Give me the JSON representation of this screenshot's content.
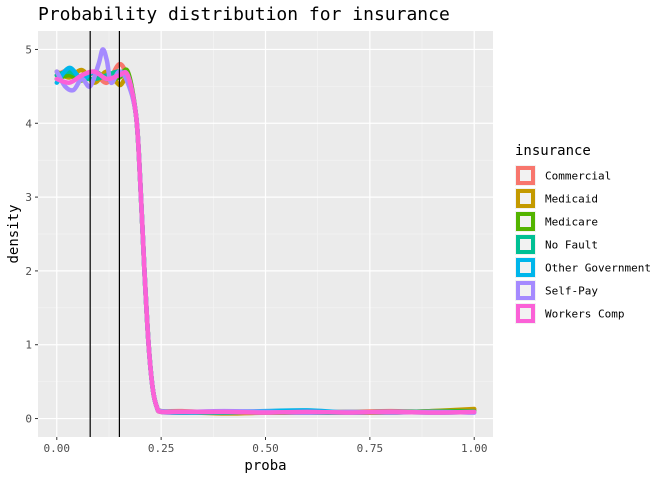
{
  "chart_data": {
    "type": "line",
    "title": "Probability distribution for insurance",
    "xlabel": "proba",
    "ylabel": "density",
    "xlim": [
      -0.045,
      1.045
    ],
    "ylim": [
      -0.25,
      5.25
    ],
    "x_ticks": [
      0.0,
      0.25,
      0.5,
      0.75,
      1.0
    ],
    "x_tick_labels": [
      "0.00",
      "0.25",
      "0.50",
      "0.75",
      "1.00"
    ],
    "y_ticks": [
      0,
      1,
      2,
      3,
      4,
      5
    ],
    "y_tick_labels": [
      "0",
      "1",
      "2",
      "3",
      "4",
      "5"
    ],
    "grid": true,
    "legend_position": "right",
    "legend_title": "insurance",
    "vlines": [
      0.08,
      0.15
    ],
    "series": [
      {
        "name": "Commercial",
        "color": "#F8766D",
        "x": [
          0.0,
          0.03,
          0.06,
          0.09,
          0.12,
          0.15,
          0.17,
          0.19,
          0.2,
          0.21,
          0.22,
          0.23,
          0.24,
          0.25,
          0.3,
          0.4,
          0.5,
          0.6,
          0.7,
          0.8,
          0.9,
          1.0
        ],
        "y": [
          4.65,
          4.72,
          4.6,
          4.68,
          4.55,
          4.8,
          4.6,
          4.1,
          3.2,
          2.0,
          1.0,
          0.4,
          0.15,
          0.1,
          0.1,
          0.08,
          0.09,
          0.08,
          0.09,
          0.1,
          0.09,
          0.12
        ]
      },
      {
        "name": "Medicaid",
        "color": "#C49A00",
        "x": [
          0.0,
          0.03,
          0.06,
          0.09,
          0.12,
          0.15,
          0.17,
          0.19,
          0.2,
          0.21,
          0.22,
          0.23,
          0.24,
          0.25,
          0.3,
          0.4,
          0.5,
          0.6,
          0.7,
          0.8,
          0.9,
          1.0
        ],
        "y": [
          4.7,
          4.62,
          4.72,
          4.55,
          4.7,
          4.52,
          4.6,
          4.1,
          3.2,
          2.0,
          1.0,
          0.4,
          0.15,
          0.09,
          0.09,
          0.07,
          0.08,
          0.09,
          0.08,
          0.08,
          0.1,
          0.13
        ]
      },
      {
        "name": "Medicare",
        "color": "#53B400",
        "x": [
          0.0,
          0.03,
          0.06,
          0.09,
          0.12,
          0.15,
          0.17,
          0.19,
          0.2,
          0.21,
          0.22,
          0.23,
          0.24,
          0.25,
          0.3,
          0.4,
          0.5,
          0.6,
          0.7,
          0.8,
          0.9,
          1.0
        ],
        "y": [
          4.6,
          4.65,
          4.58,
          4.7,
          4.6,
          4.62,
          4.7,
          4.1,
          3.2,
          2.0,
          1.0,
          0.4,
          0.15,
          0.1,
          0.08,
          0.09,
          0.08,
          0.08,
          0.09,
          0.08,
          0.1,
          0.1
        ]
      },
      {
        "name": "No Fault",
        "color": "#00C094",
        "x": [
          0.0,
          0.03,
          0.06,
          0.09,
          0.12,
          0.15,
          0.17,
          0.19,
          0.2,
          0.21,
          0.22,
          0.23,
          0.24,
          0.25,
          0.3,
          0.4,
          0.5,
          0.6,
          0.7,
          0.8,
          0.9,
          1.0
        ],
        "y": [
          4.65,
          4.7,
          4.62,
          4.6,
          4.65,
          4.7,
          4.6,
          4.1,
          3.2,
          2.0,
          1.0,
          0.4,
          0.15,
          0.1,
          0.09,
          0.08,
          0.09,
          0.08,
          0.08,
          0.09,
          0.09,
          0.09
        ]
      },
      {
        "name": "Other Government",
        "color": "#00B6EB",
        "x": [
          0.0,
          0.03,
          0.06,
          0.09,
          0.12,
          0.15,
          0.17,
          0.19,
          0.2,
          0.21,
          0.22,
          0.23,
          0.24,
          0.25,
          0.3,
          0.4,
          0.5,
          0.6,
          0.7,
          0.8,
          0.9,
          1.0
        ],
        "y": [
          4.55,
          4.75,
          4.6,
          4.7,
          4.6,
          4.65,
          4.65,
          4.1,
          3.2,
          2.0,
          1.0,
          0.4,
          0.15,
          0.09,
          0.08,
          0.09,
          0.1,
          0.11,
          0.08,
          0.09,
          0.08,
          0.09
        ]
      },
      {
        "name": "Self-Pay",
        "color": "#A58AFF",
        "x": [
          0.0,
          0.02,
          0.04,
          0.06,
          0.08,
          0.1,
          0.11,
          0.12,
          0.13,
          0.15,
          0.17,
          0.19,
          0.2,
          0.21,
          0.22,
          0.23,
          0.24,
          0.25,
          0.3,
          0.4,
          0.5,
          0.6,
          0.7,
          0.8,
          0.9,
          1.0
        ],
        "y": [
          4.7,
          4.5,
          4.45,
          4.6,
          4.5,
          4.8,
          5.0,
          4.85,
          4.55,
          4.7,
          4.55,
          4.1,
          3.2,
          2.0,
          1.0,
          0.4,
          0.15,
          0.1,
          0.09,
          0.1,
          0.09,
          0.08,
          0.09,
          0.08,
          0.09,
          0.08
        ]
      },
      {
        "name": "Workers Comp",
        "color": "#FB61D7",
        "x": [
          0.0,
          0.03,
          0.06,
          0.09,
          0.12,
          0.15,
          0.17,
          0.19,
          0.2,
          0.21,
          0.22,
          0.23,
          0.24,
          0.25,
          0.3,
          0.4,
          0.5,
          0.6,
          0.7,
          0.8,
          0.9,
          1.0
        ],
        "y": [
          4.6,
          4.55,
          4.65,
          4.7,
          4.6,
          4.65,
          4.65,
          4.1,
          3.2,
          2.0,
          1.0,
          0.4,
          0.15,
          0.09,
          0.09,
          0.09,
          0.08,
          0.09,
          0.08,
          0.09,
          0.08,
          0.09
        ]
      }
    ]
  }
}
